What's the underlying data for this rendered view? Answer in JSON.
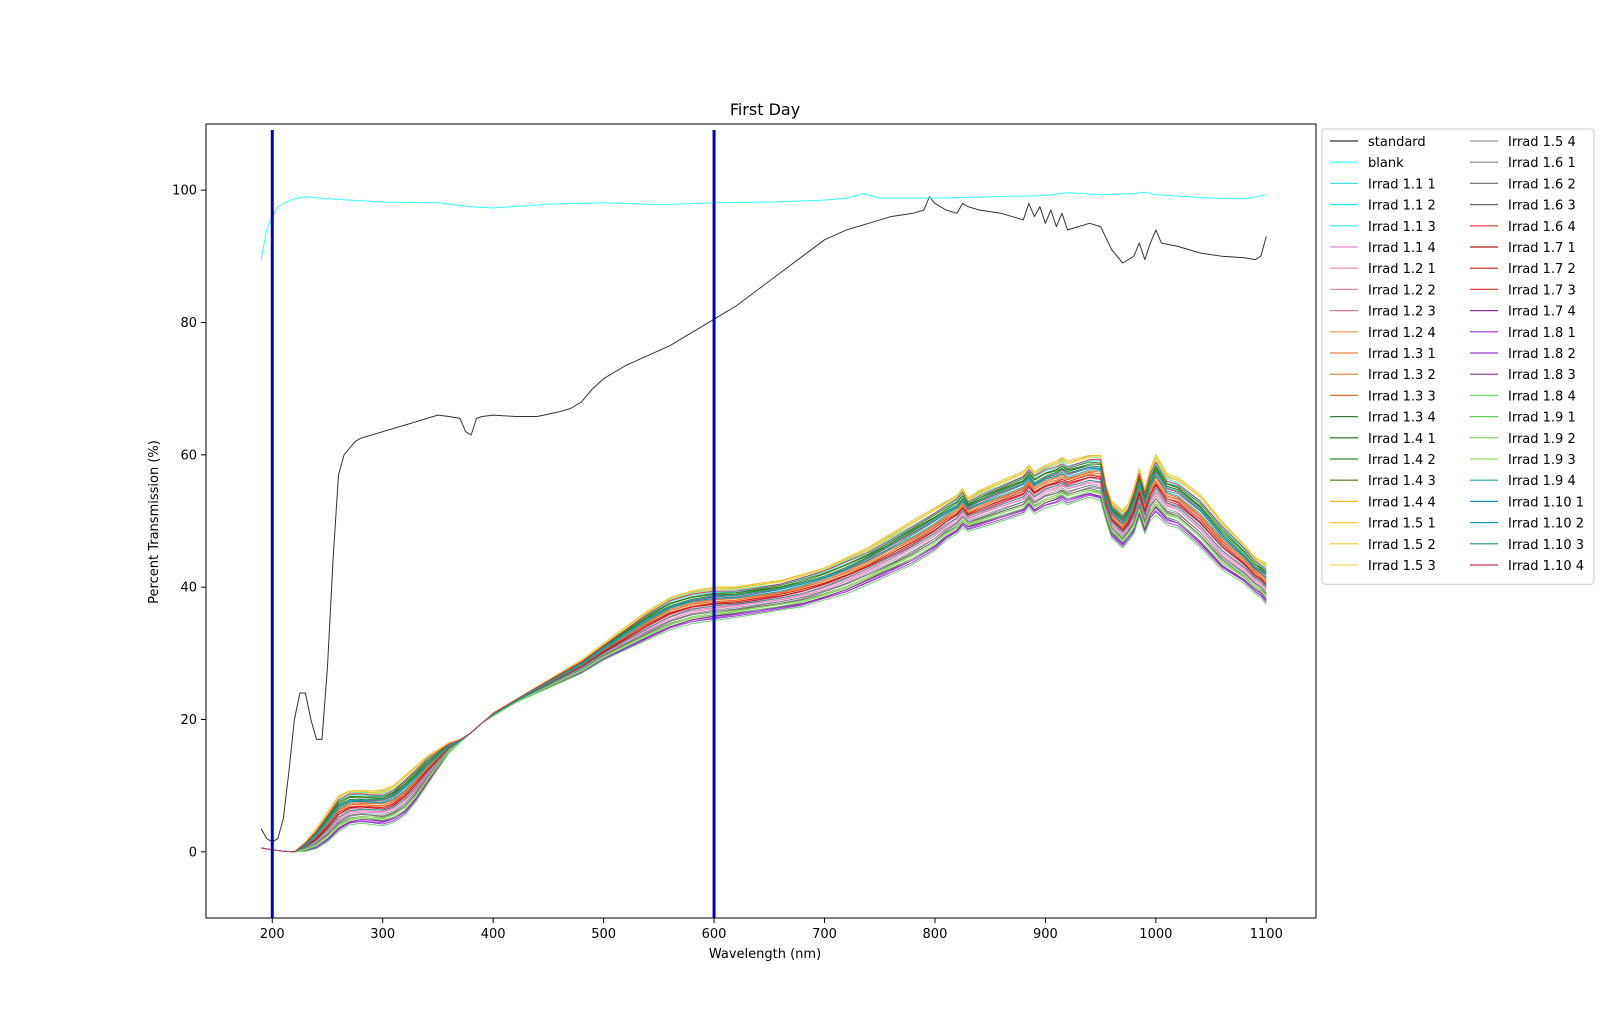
{
  "chart_data": {
    "type": "line",
    "title": "First Day",
    "xlabel": "Wavelength (nm)",
    "ylabel": "Percent Transmission (%)",
    "xlim": [
      140,
      1145
    ],
    "ylim": [
      -10,
      110
    ],
    "xticks": [
      200,
      300,
      400,
      500,
      600,
      700,
      800,
      900,
      1000,
      1100
    ],
    "yticks": [
      0,
      20,
      40,
      60,
      80,
      100
    ],
    "grid": false,
    "legend_position": "outside-right",
    "legend_columns": 2,
    "vlines": [
      {
        "x": 200,
        "color": "#0000cc"
      },
      {
        "x": 600,
        "color": "#0000cc"
      }
    ],
    "series": [
      {
        "name": "standard",
        "color": "#333333",
        "points": [
          [
            190,
            3.5
          ],
          [
            195,
            2
          ],
          [
            200,
            1.5
          ],
          [
            205,
            2
          ],
          [
            210,
            5
          ],
          [
            215,
            12
          ],
          [
            220,
            20
          ],
          [
            225,
            24
          ],
          [
            230,
            24
          ],
          [
            235,
            20
          ],
          [
            240,
            17
          ],
          [
            245,
            17
          ],
          [
            250,
            28
          ],
          [
            255,
            44
          ],
          [
            260,
            57
          ],
          [
            265,
            60
          ],
          [
            270,
            61
          ],
          [
            275,
            62
          ],
          [
            280,
            62.5
          ],
          [
            290,
            63
          ],
          [
            300,
            63.5
          ],
          [
            310,
            64
          ],
          [
            320,
            64.5
          ],
          [
            330,
            65
          ],
          [
            340,
            65.5
          ],
          [
            350,
            66
          ],
          [
            360,
            65.8
          ],
          [
            370,
            65.5
          ],
          [
            375,
            63.5
          ],
          [
            380,
            63
          ],
          [
            385,
            65.5
          ],
          [
            390,
            65.8
          ],
          [
            400,
            66
          ],
          [
            420,
            65.8
          ],
          [
            440,
            65.8
          ],
          [
            460,
            66.5
          ],
          [
            470,
            67
          ],
          [
            480,
            68
          ],
          [
            490,
            70
          ],
          [
            500,
            71.5
          ],
          [
            520,
            73.5
          ],
          [
            540,
            75
          ],
          [
            560,
            76.5
          ],
          [
            580,
            78.5
          ],
          [
            600,
            80.5
          ],
          [
            610,
            81.5
          ],
          [
            620,
            82.5
          ],
          [
            640,
            85
          ],
          [
            660,
            87.5
          ],
          [
            680,
            90
          ],
          [
            700,
            92.5
          ],
          [
            720,
            94
          ],
          [
            740,
            95
          ],
          [
            760,
            96
          ],
          [
            780,
            96.5
          ],
          [
            790,
            97
          ],
          [
            795,
            99
          ],
          [
            800,
            98
          ],
          [
            810,
            97
          ],
          [
            820,
            96.5
          ],
          [
            825,
            98
          ],
          [
            830,
            97.5
          ],
          [
            840,
            97
          ],
          [
            860,
            96.5
          ],
          [
            880,
            95.5
          ],
          [
            885,
            98
          ],
          [
            890,
            96
          ],
          [
            895,
            97.5
          ],
          [
            900,
            95
          ],
          [
            905,
            97
          ],
          [
            910,
            94.5
          ],
          [
            915,
            96.5
          ],
          [
            920,
            94
          ],
          [
            930,
            94.5
          ],
          [
            940,
            95
          ],
          [
            950,
            94.5
          ],
          [
            960,
            91
          ],
          [
            970,
            89
          ],
          [
            980,
            90
          ],
          [
            985,
            92
          ],
          [
            990,
            89.5
          ],
          [
            995,
            92
          ],
          [
            1000,
            94
          ],
          [
            1005,
            92
          ],
          [
            1020,
            91.5
          ],
          [
            1040,
            90.5
          ],
          [
            1060,
            90
          ],
          [
            1080,
            89.8
          ],
          [
            1090,
            89.5
          ],
          [
            1095,
            90
          ],
          [
            1100,
            93
          ]
        ]
      },
      {
        "name": "blank",
        "color": "#33ffff",
        "points": [
          [
            190,
            89.5
          ],
          [
            195,
            94
          ],
          [
            200,
            96
          ],
          [
            205,
            97.5
          ],
          [
            210,
            98
          ],
          [
            220,
            98.7
          ],
          [
            230,
            99
          ],
          [
            250,
            98.7
          ],
          [
            300,
            98.2
          ],
          [
            350,
            98.1
          ],
          [
            380,
            97.5
          ],
          [
            400,
            97.3
          ],
          [
            450,
            97.9
          ],
          [
            500,
            98.1
          ],
          [
            550,
            97.8
          ],
          [
            600,
            98.1
          ],
          [
            650,
            98.2
          ],
          [
            700,
            98.5
          ],
          [
            720,
            98.8
          ],
          [
            735,
            99.5
          ],
          [
            750,
            98.8
          ],
          [
            800,
            98.8
          ],
          [
            850,
            99
          ],
          [
            900,
            99.2
          ],
          [
            920,
            99.6
          ],
          [
            950,
            99.3
          ],
          [
            980,
            99.5
          ],
          [
            990,
            99.7
          ],
          [
            1000,
            99.3
          ],
          [
            1050,
            98.8
          ],
          [
            1080,
            98.7
          ],
          [
            1100,
            99.3
          ]
        ]
      },
      {
        "name": "Irrad 1.1 1",
        "color": "#40e0f0",
        "level": 0.95
      },
      {
        "name": "Irrad 1.1 2",
        "color": "#33e8f2",
        "level": 0.9
      },
      {
        "name": "Irrad 1.1 3",
        "color": "#26f0f5",
        "level": 0.85
      },
      {
        "name": "Irrad 1.1 4",
        "color": "#e889d0",
        "level": 0.4
      },
      {
        "name": "Irrad 1.2 1",
        "color": "#f080c0",
        "level": 0.35
      },
      {
        "name": "Irrad 1.2 2",
        "color": "#ee82b4",
        "level": 0.38
      },
      {
        "name": "Irrad 1.2 3",
        "color": "#e87a9c",
        "level": 0.45
      },
      {
        "name": "Irrad 1.2 4",
        "color": "#f5954f",
        "level": 0.55
      },
      {
        "name": "Irrad 1.3 1",
        "color": "#f08040",
        "level": 0.6
      },
      {
        "name": "Irrad 1.3 2",
        "color": "#e07830",
        "level": 0.62
      },
      {
        "name": "Irrad 1.3 3",
        "color": "#f06a2a",
        "level": 0.58
      },
      {
        "name": "Irrad 1.3 4",
        "color": "#2e7d32",
        "level": 0.75
      },
      {
        "name": "Irrad 1.4 1",
        "color": "#1b6e1b",
        "level": 0.8
      },
      {
        "name": "Irrad 1.4 2",
        "color": "#2a8a2a",
        "level": 0.78
      },
      {
        "name": "Irrad 1.4 3",
        "color": "#4a7a10",
        "level": 0.82
      },
      {
        "name": "Irrad 1.4 4",
        "color": "#e8c020",
        "level": 1.0
      },
      {
        "name": "Irrad 1.5 1",
        "color": "#f2d030",
        "level": 0.98
      },
      {
        "name": "Irrad 1.5 2",
        "color": "#f0c830",
        "level": 0.96
      },
      {
        "name": "Irrad 1.5 3",
        "color": "#f5d860",
        "level": 0.93
      },
      {
        "name": "Irrad 1.5 4",
        "color": "#9999aa",
        "level": 0.3
      },
      {
        "name": "Irrad 1.6 1",
        "color": "#888888",
        "level": 0.25
      },
      {
        "name": "Irrad 1.6 2",
        "color": "#7a7a7a",
        "level": 0.28
      },
      {
        "name": "Irrad 1.6 3",
        "color": "#6a6a6a",
        "level": 0.22
      },
      {
        "name": "Irrad 1.6 4",
        "color": "#e83030",
        "level": 0.5
      },
      {
        "name": "Irrad 1.7 1",
        "color": "#b01c1c",
        "level": 0.48
      },
      {
        "name": "Irrad 1.7 2",
        "color": "#d42020",
        "level": 0.52
      },
      {
        "name": "Irrad 1.7 3",
        "color": "#f04040",
        "level": 0.7
      },
      {
        "name": "Irrad 1.7 4",
        "color": "#8030a0",
        "level": 0.1
      },
      {
        "name": "Irrad 1.8 1",
        "color": "#a030e0",
        "level": 0.05
      },
      {
        "name": "Irrad 1.8 2",
        "color": "#9c40d8",
        "level": 0.08
      },
      {
        "name": "Irrad 1.8 3",
        "color": "#903090",
        "level": 0.12
      },
      {
        "name": "Irrad 1.8 4",
        "color": "#70e070",
        "level": 0.15
      },
      {
        "name": "Irrad 1.9 1",
        "color": "#60d060",
        "level": 0.0
      },
      {
        "name": "Irrad 1.9 2",
        "color": "#80d050",
        "level": 0.18
      },
      {
        "name": "Irrad 1.9 3",
        "color": "#90e060",
        "level": 0.2
      },
      {
        "name": "Irrad 1.9 4",
        "color": "#20a0a0",
        "level": 0.65
      },
      {
        "name": "Irrad 1.10 1",
        "color": "#1890c0",
        "level": 0.68
      },
      {
        "name": "Irrad 1.10 2",
        "color": "#10a0b0",
        "level": 0.72
      },
      {
        "name": "Irrad 1.10 3",
        "color": "#209090",
        "level": 0.42
      },
      {
        "name": "Irrad 1.10 4",
        "color": "#d83050",
        "level": 0.88
      }
    ],
    "irrad_envelope": {
      "x": [
        190,
        200,
        210,
        220,
        230,
        240,
        250,
        260,
        270,
        280,
        290,
        300,
        310,
        320,
        330,
        340,
        350,
        360,
        370,
        380,
        390,
        400,
        420,
        440,
        460,
        480,
        500,
        520,
        540,
        560,
        580,
        600,
        620,
        640,
        660,
        680,
        700,
        720,
        740,
        760,
        780,
        800,
        810,
        820,
        825,
        830,
        840,
        860,
        880,
        885,
        890,
        900,
        910,
        915,
        920,
        930,
        940,
        950,
        955,
        960,
        970,
        975,
        980,
        985,
        990,
        995,
        1000,
        1010,
        1020,
        1040,
        1060,
        1080,
        1090,
        1095,
        1100
      ],
      "low": [
        0.6,
        0.3,
        0.1,
        0.0,
        0.1,
        0.5,
        1.5,
        3.0,
        4.0,
        4.3,
        4.2,
        4.0,
        4.5,
        5.5,
        7.5,
        10.0,
        12.5,
        15.0,
        16.5,
        18.0,
        19.5,
        20.5,
        22.5,
        24.0,
        25.5,
        27.0,
        29.0,
        30.5,
        32.0,
        33.5,
        34.5,
        35.0,
        35.5,
        36.0,
        36.5,
        37.0,
        38.0,
        39.0,
        40.5,
        42.0,
        43.5,
        45.5,
        47.0,
        48.0,
        49.0,
        48.5,
        49.0,
        50.0,
        51.0,
        52.0,
        51.0,
        52.0,
        52.5,
        53.0,
        52.5,
        53.0,
        53.5,
        53.0,
        50.0,
        47.5,
        46.0,
        47.0,
        48.0,
        50.5,
        48.0,
        50.0,
        51.0,
        49.5,
        49.0,
        46.0,
        42.5,
        40.5,
        39.0,
        38.5,
        37.5
      ],
      "high": [
        0.6,
        0.3,
        0.1,
        0.0,
        1.5,
        3.5,
        6.0,
        8.5,
        9.3,
        9.3,
        9.2,
        9.3,
        10.0,
        11.5,
        13.0,
        14.5,
        15.5,
        16.5,
        17.0,
        18.0,
        19.5,
        21.0,
        23.0,
        25.0,
        27.0,
        29.0,
        31.5,
        34.0,
        36.5,
        38.5,
        39.5,
        40.0,
        40.0,
        40.5,
        41.0,
        42.0,
        43.0,
        44.5,
        46.0,
        48.0,
        50.0,
        52.0,
        53.0,
        54.0,
        55.0,
        53.5,
        54.5,
        56.0,
        57.5,
        58.5,
        57.5,
        58.5,
        59.0,
        59.5,
        59.0,
        59.5,
        60.0,
        60.0,
        55.5,
        53.0,
        51.5,
        52.5,
        55.0,
        58.0,
        55.0,
        58.0,
        60.0,
        57.0,
        56.5,
        54.0,
        50.0,
        46.5,
        44.5,
        44.0,
        43.5
      ]
    }
  }
}
